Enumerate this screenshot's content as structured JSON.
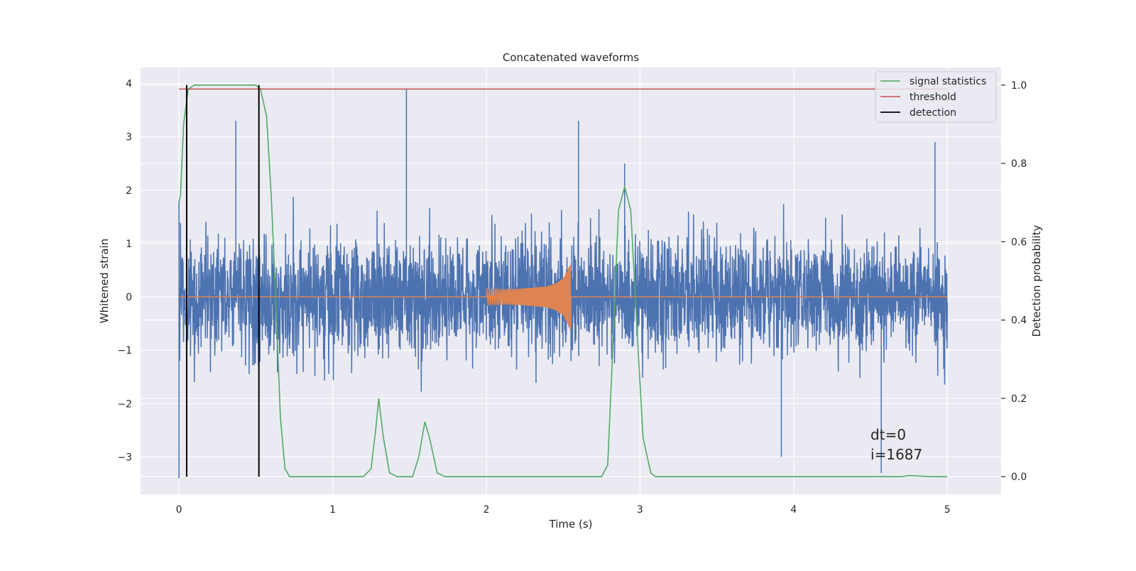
{
  "chart_data": {
    "type": "line",
    "title": "Concatenated waveforms",
    "xlabel": "Time (s)",
    "ylabel_left": "Whitened strain",
    "ylabel_right": "Detection probability",
    "xlim": [
      -0.25,
      5.35
    ],
    "ylim_left": [
      -3.7,
      4.3
    ],
    "ylim_right": [
      -0.045,
      1.045
    ],
    "xticks": [
      0,
      1,
      2,
      3,
      4,
      5
    ],
    "yticks_left": [
      -3,
      -2,
      -1,
      0,
      1,
      2,
      3,
      4
    ],
    "yticks_right": [
      0.0,
      0.2,
      0.4,
      0.6,
      0.8,
      1.0
    ],
    "xtick_labels": [
      "0",
      "1",
      "2",
      "3",
      "4",
      "5"
    ],
    "ytick_labels_left": [
      "−3",
      "−2",
      "−1",
      "0",
      "1",
      "2",
      "3",
      "4"
    ],
    "ytick_labels_right": [
      "0.0",
      "0.2",
      "0.4",
      "0.6",
      "0.8",
      "1.0"
    ],
    "grid": true,
    "legend_position": "top-right",
    "legend": [
      {
        "label": "signal statistics",
        "color": "#55a868"
      },
      {
        "label": "threshold",
        "color": "#c44e52"
      },
      {
        "label": "detection",
        "color": "#000000"
      }
    ],
    "strain_noise": {
      "color": "#4c72b0",
      "t_range": [
        0,
        5
      ],
      "approx_range": [
        -3.4,
        3.9
      ],
      "notable_peaks": [
        [
          0.0,
          1.8
        ],
        [
          0.0,
          -3.4
        ],
        [
          0.37,
          3.3
        ],
        [
          1.48,
          3.9
        ],
        [
          2.6,
          3.3
        ],
        [
          2.9,
          2.5
        ],
        [
          3.92,
          -3.0
        ],
        [
          4.57,
          -3.3
        ],
        [
          4.92,
          2.9
        ]
      ]
    },
    "injected_waveform": {
      "color": "#dd8452",
      "t_range": [
        2.0,
        2.55
      ],
      "points": [
        [
          2.0,
          0.15
        ],
        [
          2.1,
          0.14
        ],
        [
          2.2,
          0.15
        ],
        [
          2.3,
          0.17
        ],
        [
          2.4,
          0.2
        ],
        [
          2.45,
          0.25
        ],
        [
          2.5,
          0.35
        ],
        [
          2.55,
          0.62
        ]
      ]
    },
    "signal_statistics": {
      "color": "#55a868",
      "points": [
        [
          0.0,
          0.7
        ],
        [
          0.01,
          0.72
        ],
        [
          0.03,
          0.9
        ],
        [
          0.06,
          0.99
        ],
        [
          0.1,
          1.0
        ],
        [
          0.5,
          1.0
        ],
        [
          0.53,
          0.99
        ],
        [
          0.57,
          0.92
        ],
        [
          0.6,
          0.72
        ],
        [
          0.63,
          0.45
        ],
        [
          0.66,
          0.15
        ],
        [
          0.69,
          0.02
        ],
        [
          0.72,
          0.0
        ],
        [
          1.2,
          0.0
        ],
        [
          1.25,
          0.02
        ],
        [
          1.28,
          0.12
        ],
        [
          1.3,
          0.2
        ],
        [
          1.33,
          0.1
        ],
        [
          1.37,
          0.01
        ],
        [
          1.42,
          0.0
        ],
        [
          1.52,
          0.0
        ],
        [
          1.56,
          0.05
        ],
        [
          1.6,
          0.14
        ],
        [
          1.63,
          0.1
        ],
        [
          1.68,
          0.01
        ],
        [
          1.73,
          0.0
        ],
        [
          2.75,
          0.0
        ],
        [
          2.79,
          0.03
        ],
        [
          2.82,
          0.3
        ],
        [
          2.86,
          0.68
        ],
        [
          2.9,
          0.74
        ],
        [
          2.94,
          0.68
        ],
        [
          2.98,
          0.38
        ],
        [
          3.02,
          0.1
        ],
        [
          3.07,
          0.01
        ],
        [
          3.1,
          0.0
        ],
        [
          4.7,
          0.0
        ],
        [
          4.75,
          0.003
        ],
        [
          4.9,
          0.0
        ],
        [
          5.0,
          0.0
        ]
      ]
    },
    "threshold": {
      "color": "#c44e52",
      "value": 0.99,
      "t_range": [
        0.0,
        5.0
      ]
    },
    "detections": {
      "color": "#000000",
      "times": [
        0.05,
        0.52
      ],
      "range": [
        0.0,
        1.0
      ]
    },
    "annotations": [
      {
        "lines": [
          "dt=0",
          "i=1687"
        ],
        "x": 4.5,
        "y": 0.095
      }
    ]
  }
}
